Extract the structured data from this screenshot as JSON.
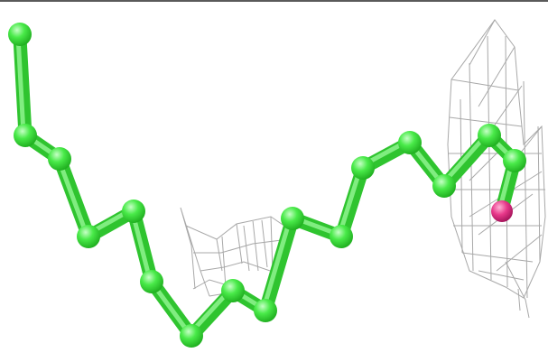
{
  "scene": {
    "background_color": "#ffffff",
    "frame_color": "#5a5a5a",
    "chain_color": "#49ea49",
    "chain_highlight": "#c6ffc6",
    "chain_shadow": "#1fae1f",
    "ligand_color": "#e8388a",
    "density_mesh_color": "#a8a8a8"
  }
}
